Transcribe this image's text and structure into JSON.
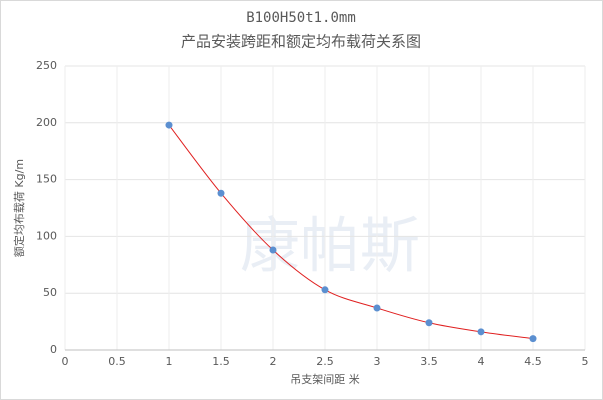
{
  "chart_data": {
    "type": "scatter",
    "title": "B100H50t1.0mm",
    "subtitle": "产品安装跨距和额定均布载荷关系图",
    "watermark": "康帕斯",
    "x_label": "吊支架间距 米",
    "y_label": "额定均布载荷 Kg/m",
    "x": [
      1,
      1.5,
      2,
      2.5,
      3,
      3.5,
      4,
      4.5
    ],
    "series": [
      {
        "color": "#5b8fd0",
        "values": [
          198,
          138,
          88,
          53,
          37,
          24,
          16,
          10
        ]
      }
    ],
    "trend_color": "#e02020",
    "xlim": [
      0,
      5
    ],
    "xticks": [
      0,
      0.5,
      1,
      1.5,
      2,
      2.5,
      3,
      3.5,
      4,
      4.5,
      5
    ],
    "ylim": [
      0,
      250
    ],
    "yticks": [
      0,
      50,
      100,
      150,
      200,
      250
    ],
    "grid": true
  }
}
